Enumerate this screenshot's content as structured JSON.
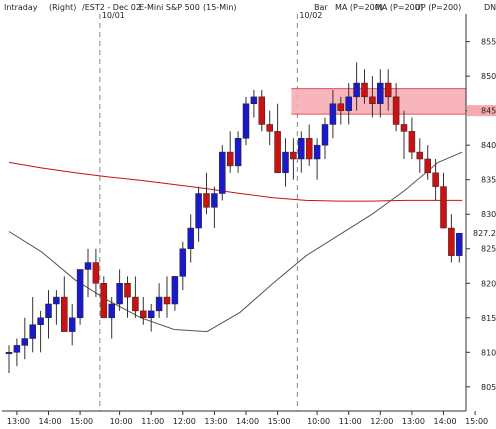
{
  "header": {
    "mode": "Intraday",
    "axis_side": "(Right)",
    "symbol": "/EST2 - Dec 02",
    "instrument": "E-Mini S&P 500",
    "interval": "(15-Min)",
    "style": "Bar",
    "legend": [
      {
        "label": "MA (P=200)",
        "color": "#dd0000"
      },
      {
        "label": "MA (P=200)",
        "color": "#dd0000"
      },
      {
        "label": "UP (P=200)",
        "color": "#0000cc"
      },
      {
        "label": "DN",
        "color": "#008800"
      }
    ]
  },
  "chart_data": {
    "type": "candlestick",
    "ylim": [
      801.5,
      859
    ],
    "y_ticks": [
      805,
      810,
      815,
      820,
      825,
      830,
      835,
      840,
      845,
      850,
      855
    ],
    "current_price": "827.25",
    "current_price_value": 827.25,
    "x_ticks": [
      "13:00",
      "14:00",
      "15:00",
      "10:00",
      "11:00",
      "12:00",
      "13:00",
      "14:00",
      "15:00",
      "10:00",
      "11:00",
      "12:00",
      "13:00",
      "14:00",
      "15:00"
    ],
    "x_tick_bars": [
      1,
      5,
      9,
      14,
      18,
      22,
      26,
      30,
      34,
      39,
      43,
      47,
      51,
      55,
      59
    ],
    "session_labels": [
      {
        "label": "10/01",
        "bar": 12
      },
      {
        "label": "10/02",
        "bar": 37
      }
    ],
    "bars": [
      [
        810,
        811,
        807,
        810
      ],
      [
        810,
        812,
        808,
        811
      ],
      [
        811,
        815,
        809,
        812
      ],
      [
        812,
        818,
        810,
        814
      ],
      [
        814,
        816,
        810,
        815
      ],
      [
        815,
        819,
        812,
        817
      ],
      [
        817,
        819,
        814,
        818
      ],
      [
        818,
        821,
        815,
        813
      ],
      [
        813,
        817,
        811,
        815
      ],
      [
        815,
        821,
        814,
        822
      ],
      [
        822,
        825,
        818,
        823
      ],
      [
        823,
        825,
        818,
        820
      ],
      [
        820,
        821,
        818,
        815
      ],
      [
        815,
        818,
        812,
        817
      ],
      [
        817,
        822,
        816,
        820
      ],
      [
        820,
        821,
        815,
        818
      ],
      [
        818,
        821,
        815,
        816
      ],
      [
        816,
        818,
        814,
        815
      ],
      [
        815,
        817,
        813,
        816
      ],
      [
        816,
        820,
        815,
        818
      ],
      [
        818,
        821,
        815,
        817
      ],
      [
        817,
        821,
        816,
        821
      ],
      [
        821,
        826,
        819,
        825
      ],
      [
        825,
        830,
        823,
        828
      ],
      [
        828,
        834,
        826,
        833
      ],
      [
        833,
        836,
        830,
        831
      ],
      [
        831,
        834,
        828,
        833
      ],
      [
        833,
        840,
        832,
        839
      ],
      [
        839,
        842,
        836,
        837
      ],
      [
        837,
        842,
        836,
        841
      ],
      [
        841,
        847,
        840,
        846
      ],
      [
        846,
        848,
        844,
        847
      ],
      [
        847,
        848,
        842,
        843
      ],
      [
        843,
        845,
        840,
        842
      ],
      [
        842,
        846,
        837,
        836
      ],
      [
        836,
        841,
        834,
        839
      ],
      [
        839,
        841,
        835,
        838
      ],
      [
        838,
        842,
        836,
        841
      ],
      [
        841,
        843,
        837,
        838
      ],
      [
        838,
        841,
        835,
        840
      ],
      [
        840,
        844,
        838,
        843
      ],
      [
        843,
        848,
        841,
        846
      ],
      [
        846,
        847,
        843,
        845
      ],
      [
        845,
        849,
        843,
        847
      ],
      [
        847,
        852,
        845,
        849
      ],
      [
        849,
        851,
        846,
        847
      ],
      [
        847,
        850,
        844,
        846
      ],
      [
        846,
        851,
        844,
        849
      ],
      [
        849,
        851,
        845,
        847
      ],
      [
        847,
        849,
        842,
        843
      ],
      [
        843,
        845,
        838,
        842
      ],
      [
        842,
        844,
        838,
        839
      ],
      [
        839,
        841,
        836,
        838
      ],
      [
        838,
        840,
        835,
        836
      ],
      [
        836,
        838,
        832,
        834
      ],
      [
        834,
        836,
        829,
        828
      ],
      [
        828,
        830,
        823,
        824
      ],
      [
        824,
        827,
        823,
        827.25
      ]
    ],
    "ma_red": [
      837.5,
      836.7,
      836.0,
      835.4,
      834.9,
      834.3,
      833.7,
      833.0,
      832.4,
      832.0,
      831.9,
      831.9,
      832.0,
      832.0,
      832.0
    ],
    "ma_gray": [
      827.5,
      824.5,
      820.5,
      817.5,
      815.0,
      813.3,
      813.0,
      815.8,
      820.0,
      824.0,
      827.0,
      830.0,
      833.5,
      837.5,
      839.0
    ],
    "resistance_zone": [
      844.5,
      848.2
    ],
    "resistance_label": "845"
  }
}
